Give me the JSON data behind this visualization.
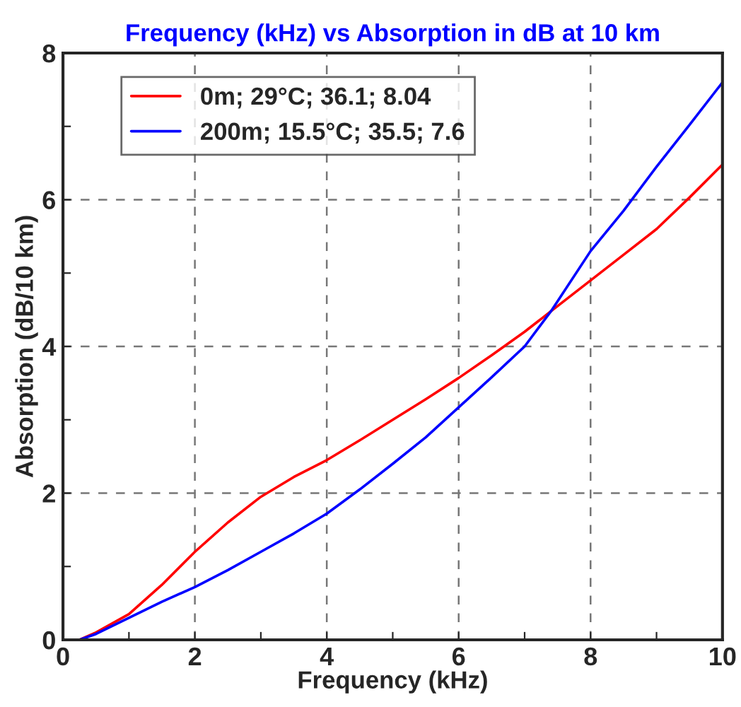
{
  "chart_data": {
    "type": "line",
    "title": "Frequency (kHz) vs Absorption in dB at 10 km",
    "xlabel": "Frequency (kHz)",
    "ylabel": "Absorption (dB/10 km)",
    "x": [
      0.25,
      0.5,
      1,
      1.5,
      2,
      2.5,
      3,
      3.5,
      4,
      4.5,
      5,
      5.5,
      6,
      6.5,
      7,
      7.4,
      8,
      8.5,
      9,
      9.5,
      10
    ],
    "series": [
      {
        "name": "0m; 29°C; 36.1; 8.04",
        "color": "#ff0000",
        "values": [
          0,
          0.1,
          0.35,
          0.75,
          1.2,
          1.6,
          1.95,
          2.22,
          2.45,
          2.72,
          3.0,
          3.28,
          3.57,
          3.88,
          4.2,
          4.48,
          4.9,
          5.25,
          5.6,
          6.03,
          6.48
        ]
      },
      {
        "name": "200m; 15.5°C; 35.5; 7.6",
        "color": "#0000ff",
        "values": [
          0,
          0.08,
          0.3,
          0.52,
          0.72,
          0.95,
          1.2,
          1.45,
          1.72,
          2.05,
          2.4,
          2.76,
          3.17,
          3.58,
          4.0,
          4.48,
          5.3,
          5.85,
          6.45,
          7.02,
          7.6
        ]
      }
    ],
    "xlim": [
      0,
      10
    ],
    "ylim": [
      0,
      8
    ],
    "xticks": [
      0,
      {
        "value": 1,
        "label": null
      },
      2,
      {
        "value": 3,
        "label": null
      },
      4,
      {
        "value": 5,
        "label": null
      },
      6,
      {
        "value": 7,
        "label": null
      },
      8,
      {
        "value": 9,
        "label": null
      },
      10
    ],
    "yticks": [
      0,
      {
        "value": 1,
        "label": null
      },
      2,
      {
        "value": 3,
        "label": null
      },
      4,
      {
        "value": 5,
        "label": null
      },
      6,
      {
        "value": 7,
        "label": null
      },
      8
    ],
    "grid": true,
    "legend": "top left",
    "line_style": "solid",
    "marker": "none"
  }
}
